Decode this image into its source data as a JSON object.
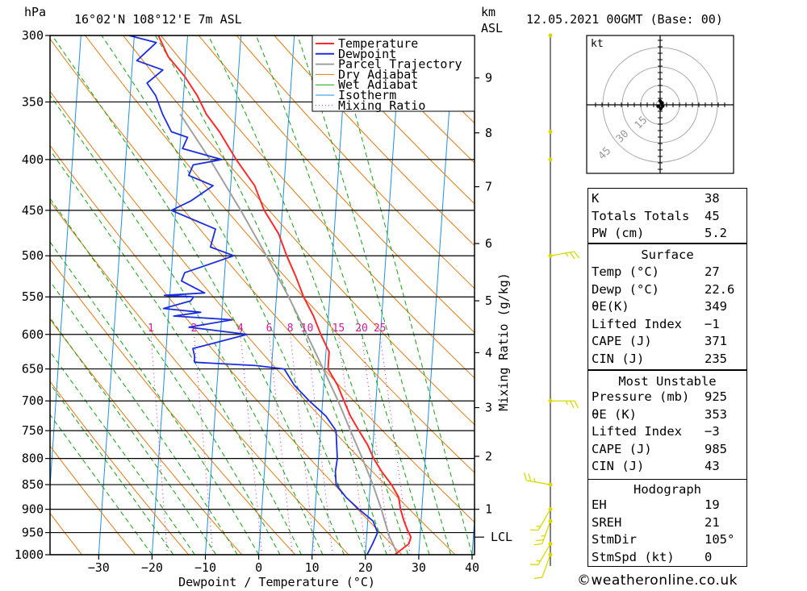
{
  "header": {
    "hpa_unit": "hPa",
    "location": "16°02'N 108°12'E 7m ASL",
    "km_unit": "km",
    "asl_unit": "ASL",
    "datetime": "12.05.2021 00GMT (Base: 00)"
  },
  "chart_data": {
    "type": "skew-t log-p",
    "xlabel": "Dewpoint / Temperature (°C)",
    "ylabel": "hPa",
    "mixing_ratio_axis_label": "Mixing Ratio (g/kg)",
    "pressure_levels": [
      300,
      350,
      400,
      450,
      500,
      550,
      600,
      650,
      700,
      750,
      800,
      850,
      900,
      950,
      1000
    ],
    "pressure_labels": [
      "300",
      "350",
      "400",
      "450",
      "500",
      "550",
      "600",
      "650",
      "700",
      "750",
      "800",
      "850",
      "900",
      "950",
      "1000"
    ],
    "temperature_ticks": [
      -30,
      -20,
      -10,
      0,
      10,
      20,
      30,
      40
    ],
    "temperature_tick_labels": [
      "−30",
      "−20",
      "−10",
      "0",
      "10",
      "20",
      "30",
      "40"
    ],
    "height_km_ticks": [
      {
        "label": "9",
        "p": 331
      },
      {
        "label": "8",
        "p": 376
      },
      {
        "label": "7",
        "p": 426
      },
      {
        "label": "6",
        "p": 486
      },
      {
        "label": "5",
        "p": 555
      },
      {
        "label": "4",
        "p": 626
      },
      {
        "label": "3",
        "p": 711
      },
      {
        "label": "2",
        "p": 796
      },
      {
        "label": "1",
        "p": 900
      }
    ],
    "lcl_label": "LCL",
    "lcl_pressure": 960,
    "mixing_ratio_labels": [
      "1",
      "2",
      "4",
      "6",
      "8",
      "10",
      "15",
      "20",
      "25"
    ],
    "mixing_ratio_values": [
      1,
      2,
      4,
      6,
      8,
      10,
      15,
      20,
      25
    ],
    "legend": [
      "Temperature",
      "Dewpoint",
      "Parcel Trajectory",
      "Dry Adiabat",
      "Wet Adiabat",
      "Isotherm",
      "Mixing Ratio"
    ],
    "colors": {
      "temperature": "#ff2a2a",
      "dewpoint": "#1a2ee0",
      "parcel": "#a0a0a0",
      "dry_adiabat": "#e07a10",
      "wet_adiabat": "#12a012",
      "isotherm": "#1e90e0",
      "mixing_ratio": "#d01aa0",
      "wind": "#d8d800"
    },
    "temperature_profile": [
      [
        1000,
        25.5
      ],
      [
        990,
        26.5
      ],
      [
        975,
        28.0
      ],
      [
        960,
        28.3
      ],
      [
        945,
        27.6
      ],
      [
        925,
        26.8
      ],
      [
        900,
        26.0
      ],
      [
        875,
        25.5
      ],
      [
        850,
        24.0
      ],
      [
        825,
        22.0
      ],
      [
        800,
        20.3
      ],
      [
        775,
        19.0
      ],
      [
        750,
        17.2
      ],
      [
        725,
        15.4
      ],
      [
        700,
        14.0
      ],
      [
        675,
        12.6
      ],
      [
        650,
        10.6
      ],
      [
        635,
        10.6
      ],
      [
        625,
        10.6
      ],
      [
        600,
        8.8
      ],
      [
        575,
        7.2
      ],
      [
        550,
        5.1
      ],
      [
        525,
        3.4
      ],
      [
        500,
        1.4
      ],
      [
        475,
        -0.4
      ],
      [
        450,
        -3.4
      ],
      [
        425,
        -5.5
      ],
      [
        400,
        -9.3
      ],
      [
        375,
        -12.8
      ],
      [
        360,
        -15.5
      ],
      [
        345,
        -17.4
      ],
      [
        330,
        -20.0
      ],
      [
        315,
        -23.4
      ],
      [
        300,
        -25.5
      ]
    ],
    "dewpoint_profile": [
      [
        1000,
        20.3
      ],
      [
        975,
        21.2
      ],
      [
        950,
        22.0
      ],
      [
        925,
        21.0
      ],
      [
        900,
        18.2
      ],
      [
        875,
        15.6
      ],
      [
        850,
        13.6
      ],
      [
        825,
        13.3
      ],
      [
        800,
        13.5
      ],
      [
        775,
        13.2
      ],
      [
        750,
        12.9
      ],
      [
        725,
        10.8
      ],
      [
        700,
        7.5
      ],
      [
        675,
        4.5
      ],
      [
        650,
        2.4
      ],
      [
        645,
        -3.0
      ],
      [
        640,
        -14.5
      ],
      [
        630,
        -14.6
      ],
      [
        620,
        -15.0
      ],
      [
        600,
        -5.0
      ],
      [
        590,
        -16.0
      ],
      [
        580,
        -8.0
      ],
      [
        575,
        -19.0
      ],
      [
        570,
        -14.0
      ],
      [
        565,
        -21.0
      ],
      [
        555,
        -16.0
      ],
      [
        550,
        -15.5
      ],
      [
        548,
        -21.0
      ],
      [
        545,
        -13.5
      ],
      [
        540,
        -15.0
      ],
      [
        530,
        -18.0
      ],
      [
        520,
        -17.5
      ],
      [
        500,
        -8.5
      ],
      [
        490,
        -13.0
      ],
      [
        470,
        -12.3
      ],
      [
        450,
        -20.8
      ],
      [
        440,
        -17.2
      ],
      [
        425,
        -13.3
      ],
      [
        415,
        -18.0
      ],
      [
        405,
        -17.3
      ],
      [
        400,
        -12.0
      ],
      [
        390,
        -19.5
      ],
      [
        380,
        -18.7
      ],
      [
        375,
        -21.8
      ],
      [
        360,
        -23.7
      ],
      [
        345,
        -25.2
      ],
      [
        335,
        -27.0
      ],
      [
        325,
        -24.2
      ],
      [
        318,
        -29.2
      ],
      [
        305,
        -25.8
      ],
      [
        300,
        -31.0
      ]
    ],
    "parcel_profile": [
      [
        1000,
        26.0
      ],
      [
        975,
        25.0
      ],
      [
        960,
        24.3
      ],
      [
        925,
        23.2
      ],
      [
        900,
        22.4
      ],
      [
        850,
        20.5
      ],
      [
        800,
        18.2
      ],
      [
        750,
        15.6
      ],
      [
        700,
        12.9
      ],
      [
        650,
        9.7
      ],
      [
        600,
        6.2
      ],
      [
        550,
        2.3
      ],
      [
        500,
        -2.4
      ],
      [
        450,
        -7.8
      ],
      [
        400,
        -14.2
      ],
      [
        360,
        -20.4
      ]
    ],
    "xlim": [
      -40,
      40
    ],
    "ylim": [
      1000,
      300
    ],
    "grid": "on",
    "legend_position": "top-center",
    "hodograph": {
      "unit": "kt",
      "rings_kt": [
        15,
        30,
        45
      ],
      "ring_labels": [
        "15",
        "30",
        "45"
      ],
      "points": [
        [
          0,
          3
        ],
        [
          1.5,
          1.5
        ],
        [
          2,
          -1
        ],
        [
          0.5,
          -3
        ],
        [
          -1.5,
          -1
        ]
      ]
    },
    "wind_barbs": [
      {
        "p": 300,
        "dir": 90,
        "speed_kt": 0
      },
      {
        "p": 375,
        "dir": 100,
        "speed_kt": 0
      },
      {
        "p": 400,
        "dir": 100,
        "speed_kt": 0
      },
      {
        "p": 500,
        "dir": 80,
        "speed_kt": 15
      },
      {
        "p": 700,
        "dir": 90,
        "speed_kt": 15
      },
      {
        "p": 850,
        "dir": 280,
        "speed_kt": 15
      },
      {
        "p": 900,
        "dir": 210,
        "speed_kt": 5
      },
      {
        "p": 925,
        "dir": 200,
        "speed_kt": 15
      },
      {
        "p": 975,
        "dir": 210,
        "speed_kt": 5
      },
      {
        "p": 1000,
        "dir": 200,
        "speed_kt": 10
      }
    ]
  },
  "indices": {
    "top": [
      {
        "k": "K",
        "v": "38"
      },
      {
        "k": "Totals Totals",
        "v": "45"
      },
      {
        "k": "PW (cm)",
        "v": "5.2"
      }
    ],
    "surface_title": "Surface",
    "surface": [
      {
        "k": "Temp (°C)",
        "v": "27"
      },
      {
        "k": "Dewp (°C)",
        "v": "22.6"
      },
      {
        "k": "θE(K)",
        "v": "349"
      },
      {
        "k": "Lifted Index",
        "v": "−1"
      },
      {
        "k": "CAPE (J)",
        "v": "371"
      },
      {
        "k": "CIN (J)",
        "v": "235"
      }
    ],
    "mu_title": "Most Unstable",
    "mu": [
      {
        "k": "Pressure (mb)",
        "v": "925"
      },
      {
        "k": "θE (K)",
        "v": "353"
      },
      {
        "k": "Lifted Index",
        "v": "−3"
      },
      {
        "k": "CAPE (J)",
        "v": "985"
      },
      {
        "k": "CIN (J)",
        "v": "43"
      }
    ],
    "hodo_title": "Hodograph",
    "hodo": [
      {
        "k": "EH",
        "v": "19"
      },
      {
        "k": "SREH",
        "v": "21"
      },
      {
        "k": "StmDir",
        "v": "105°"
      },
      {
        "k": "StmSpd (kt)",
        "v": "0"
      }
    ]
  },
  "footer": {
    "credit": "©weatheronline.co.uk"
  }
}
